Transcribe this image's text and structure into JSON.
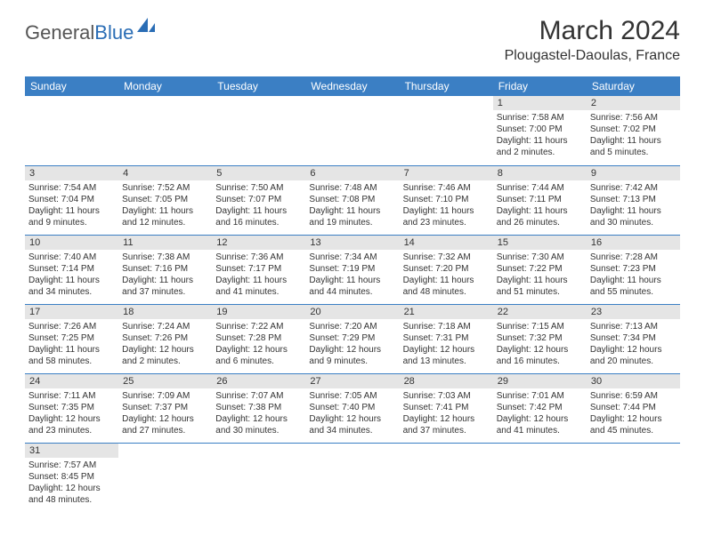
{
  "header": {
    "logo_general": "General",
    "logo_blue": "Blue",
    "month_title": "March 2024",
    "location": "Plougastel-Daoulas, France"
  },
  "colors": {
    "header_bg": "#3b7fc4",
    "header_text": "#ffffff",
    "daynum_bg": "#e5e5e5",
    "row_border": "#3b7fc4",
    "logo_blue": "#2a6db5",
    "text": "#333333"
  },
  "weekdays": [
    "Sunday",
    "Monday",
    "Tuesday",
    "Wednesday",
    "Thursday",
    "Friday",
    "Saturday"
  ],
  "calendar": {
    "rows": [
      [
        null,
        null,
        null,
        null,
        null,
        {
          "day": "1",
          "sunrise": "7:58 AM",
          "sunset": "7:00 PM",
          "daylight": "11 hours and 2 minutes."
        },
        {
          "day": "2",
          "sunrise": "7:56 AM",
          "sunset": "7:02 PM",
          "daylight": "11 hours and 5 minutes."
        }
      ],
      [
        {
          "day": "3",
          "sunrise": "7:54 AM",
          "sunset": "7:04 PM",
          "daylight": "11 hours and 9 minutes."
        },
        {
          "day": "4",
          "sunrise": "7:52 AM",
          "sunset": "7:05 PM",
          "daylight": "11 hours and 12 minutes."
        },
        {
          "day": "5",
          "sunrise": "7:50 AM",
          "sunset": "7:07 PM",
          "daylight": "11 hours and 16 minutes."
        },
        {
          "day": "6",
          "sunrise": "7:48 AM",
          "sunset": "7:08 PM",
          "daylight": "11 hours and 19 minutes."
        },
        {
          "day": "7",
          "sunrise": "7:46 AM",
          "sunset": "7:10 PM",
          "daylight": "11 hours and 23 minutes."
        },
        {
          "day": "8",
          "sunrise": "7:44 AM",
          "sunset": "7:11 PM",
          "daylight": "11 hours and 26 minutes."
        },
        {
          "day": "9",
          "sunrise": "7:42 AM",
          "sunset": "7:13 PM",
          "daylight": "11 hours and 30 minutes."
        }
      ],
      [
        {
          "day": "10",
          "sunrise": "7:40 AM",
          "sunset": "7:14 PM",
          "daylight": "11 hours and 34 minutes."
        },
        {
          "day": "11",
          "sunrise": "7:38 AM",
          "sunset": "7:16 PM",
          "daylight": "11 hours and 37 minutes."
        },
        {
          "day": "12",
          "sunrise": "7:36 AM",
          "sunset": "7:17 PM",
          "daylight": "11 hours and 41 minutes."
        },
        {
          "day": "13",
          "sunrise": "7:34 AM",
          "sunset": "7:19 PM",
          "daylight": "11 hours and 44 minutes."
        },
        {
          "day": "14",
          "sunrise": "7:32 AM",
          "sunset": "7:20 PM",
          "daylight": "11 hours and 48 minutes."
        },
        {
          "day": "15",
          "sunrise": "7:30 AM",
          "sunset": "7:22 PM",
          "daylight": "11 hours and 51 minutes."
        },
        {
          "day": "16",
          "sunrise": "7:28 AM",
          "sunset": "7:23 PM",
          "daylight": "11 hours and 55 minutes."
        }
      ],
      [
        {
          "day": "17",
          "sunrise": "7:26 AM",
          "sunset": "7:25 PM",
          "daylight": "11 hours and 58 minutes."
        },
        {
          "day": "18",
          "sunrise": "7:24 AM",
          "sunset": "7:26 PM",
          "daylight": "12 hours and 2 minutes."
        },
        {
          "day": "19",
          "sunrise": "7:22 AM",
          "sunset": "7:28 PM",
          "daylight": "12 hours and 6 minutes."
        },
        {
          "day": "20",
          "sunrise": "7:20 AM",
          "sunset": "7:29 PM",
          "daylight": "12 hours and 9 minutes."
        },
        {
          "day": "21",
          "sunrise": "7:18 AM",
          "sunset": "7:31 PM",
          "daylight": "12 hours and 13 minutes."
        },
        {
          "day": "22",
          "sunrise": "7:15 AM",
          "sunset": "7:32 PM",
          "daylight": "12 hours and 16 minutes."
        },
        {
          "day": "23",
          "sunrise": "7:13 AM",
          "sunset": "7:34 PM",
          "daylight": "12 hours and 20 minutes."
        }
      ],
      [
        {
          "day": "24",
          "sunrise": "7:11 AM",
          "sunset": "7:35 PM",
          "daylight": "12 hours and 23 minutes."
        },
        {
          "day": "25",
          "sunrise": "7:09 AM",
          "sunset": "7:37 PM",
          "daylight": "12 hours and 27 minutes."
        },
        {
          "day": "26",
          "sunrise": "7:07 AM",
          "sunset": "7:38 PM",
          "daylight": "12 hours and 30 minutes."
        },
        {
          "day": "27",
          "sunrise": "7:05 AM",
          "sunset": "7:40 PM",
          "daylight": "12 hours and 34 minutes."
        },
        {
          "day": "28",
          "sunrise": "7:03 AM",
          "sunset": "7:41 PM",
          "daylight": "12 hours and 37 minutes."
        },
        {
          "day": "29",
          "sunrise": "7:01 AM",
          "sunset": "7:42 PM",
          "daylight": "12 hours and 41 minutes."
        },
        {
          "day": "30",
          "sunrise": "6:59 AM",
          "sunset": "7:44 PM",
          "daylight": "12 hours and 45 minutes."
        }
      ],
      [
        {
          "day": "31",
          "sunrise": "7:57 AM",
          "sunset": "8:45 PM",
          "daylight": "12 hours and 48 minutes."
        },
        null,
        null,
        null,
        null,
        null,
        null
      ]
    ]
  },
  "labels": {
    "sunrise_prefix": "Sunrise: ",
    "sunset_prefix": "Sunset: ",
    "daylight_prefix": "Daylight: "
  }
}
